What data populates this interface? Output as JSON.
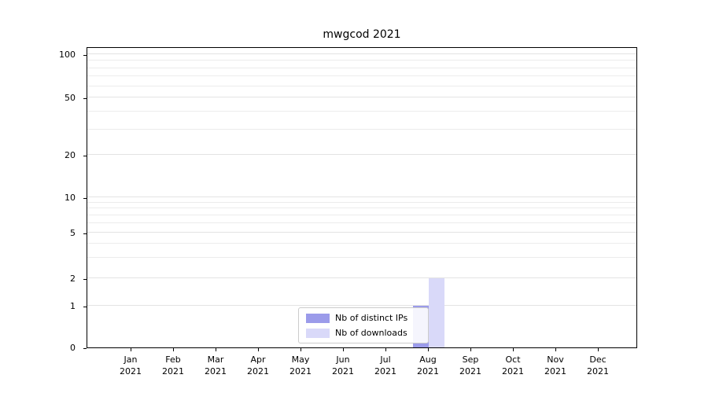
{
  "chart_data": {
    "type": "bar",
    "title": "mwgcod 2021",
    "categories": [
      "Jan",
      "Feb",
      "Mar",
      "Apr",
      "May",
      "Jun",
      "Jul",
      "Aug",
      "Sep",
      "Oct",
      "Nov",
      "Dec"
    ],
    "year_label": "2021",
    "y_ticks": [
      0,
      1,
      2,
      5,
      10,
      20,
      50,
      100
    ],
    "minor_gridline_values": [
      3,
      4,
      6,
      7,
      8,
      9,
      30,
      40,
      60,
      70,
      80,
      90
    ],
    "ylim": [
      0,
      100
    ],
    "y_scale": "symlog",
    "grid": true,
    "legend_position": "lower-center",
    "series": [
      {
        "name": "Nb of distinct IPs",
        "color": "#9b9bea",
        "values": [
          0,
          0,
          0,
          0,
          0,
          0,
          0,
          1,
          0,
          0,
          0,
          0
        ]
      },
      {
        "name": "Nb of downloads",
        "color": "#d9d9f9",
        "values": [
          0,
          0,
          0,
          0,
          0,
          0,
          0,
          2,
          0,
          0,
          0,
          0
        ]
      }
    ]
  }
}
